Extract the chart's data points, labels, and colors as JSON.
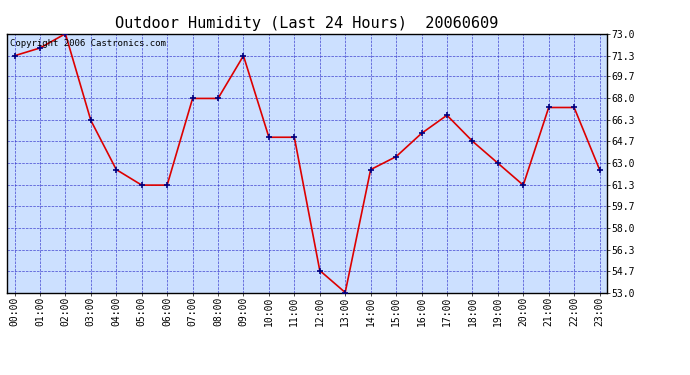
{
  "title": "Outdoor Humidity (Last 24 Hours)  20060609",
  "copyright_text": "Copyright 2006 Castronics.com",
  "x_labels": [
    "00:00",
    "01:00",
    "02:00",
    "03:00",
    "04:00",
    "05:00",
    "06:00",
    "07:00",
    "08:00",
    "09:00",
    "10:00",
    "11:00",
    "12:00",
    "13:00",
    "14:00",
    "15:00",
    "16:00",
    "17:00",
    "18:00",
    "19:00",
    "20:00",
    "21:00",
    "22:00",
    "23:00"
  ],
  "x_values": [
    0,
    1,
    2,
    3,
    4,
    5,
    6,
    7,
    8,
    9,
    10,
    11,
    12,
    13,
    14,
    15,
    16,
    17,
    18,
    19,
    20,
    21,
    22,
    23
  ],
  "y_values": [
    71.3,
    71.9,
    73.0,
    66.3,
    62.5,
    61.3,
    61.3,
    68.0,
    68.0,
    71.3,
    65.0,
    65.0,
    54.7,
    53.0,
    62.5,
    63.5,
    65.3,
    66.7,
    64.7,
    63.0,
    61.3,
    67.3,
    67.3,
    62.5
  ],
  "y_ticks": [
    53.0,
    54.7,
    56.3,
    58.0,
    59.7,
    61.3,
    63.0,
    64.7,
    66.3,
    68.0,
    69.7,
    71.3,
    73.0
  ],
  "ylim": [
    53.0,
    73.0
  ],
  "line_color": "#dd0000",
  "marker_color": "#000080",
  "grid_color": "#3333cc",
  "background_color": "#ffffff",
  "plot_bg_color": "#cce0ff",
  "title_fontsize": 11,
  "tick_fontsize": 7,
  "copyright_fontsize": 6.5
}
